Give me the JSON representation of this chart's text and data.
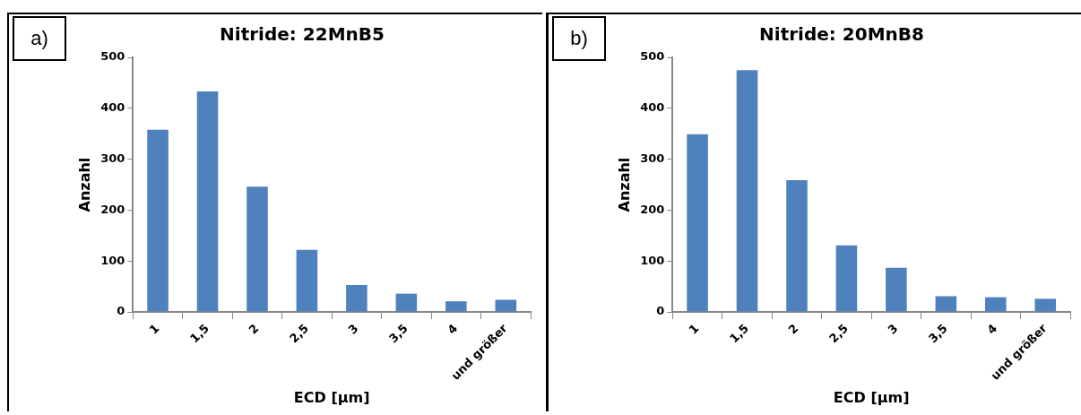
{
  "chart_data": [
    {
      "type": "bar",
      "title": "Nitride: 22MnB5",
      "xlabel": "ECD [µm]",
      "ylabel": "Anzahl",
      "annotations": [
        "a)"
      ],
      "categories": [
        "1",
        "1,5",
        "2",
        "2,5",
        "3",
        "3,5",
        "4",
        "und größer"
      ],
      "values": [
        358,
        433,
        246,
        122,
        53,
        36,
        21,
        24
      ],
      "color": "#4f81bd",
      "ylim": [
        0,
        500
      ],
      "yticks": [
        0,
        100,
        200,
        300,
        400,
        500
      ],
      "grid": false,
      "legend": false
    },
    {
      "type": "bar",
      "title": "Nitride: 20MnB8",
      "xlabel": "ECD [µm]",
      "ylabel": "Anzahl",
      "annotations": [
        "b)"
      ],
      "categories": [
        "1",
        "1,5",
        "2",
        "2,5",
        "3",
        "3,5",
        "4",
        "und größer"
      ],
      "values": [
        349,
        475,
        259,
        131,
        87,
        31,
        29,
        26
      ],
      "color": "#4f81bd",
      "ylim": [
        0,
        500
      ],
      "yticks": [
        0,
        100,
        200,
        300,
        400,
        500
      ],
      "grid": false,
      "legend": false
    }
  ]
}
